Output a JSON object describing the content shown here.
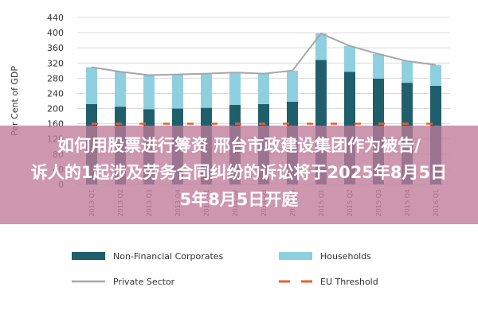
{
  "chart_data": {
    "type": "bar",
    "ylabel": "Per Cent of GDP",
    "ylim": [
      0,
      440
    ],
    "yticks": [
      0,
      40,
      80,
      120,
      160,
      200,
      240,
      280,
      320,
      360,
      400,
      440
    ],
    "categories": [
      "2013 Q1",
      "2013 Q2",
      "2013 Q3",
      "2013 Q4",
      "2014 Q1",
      "2014 Q2",
      "2014 Q3",
      "2014 Q4",
      "2015 Q1",
      "2015 Q2",
      "2015 Q3",
      "2015 Q4",
      "2016 Q1"
    ],
    "series": [
      {
        "name": "Non-Financial Corporates",
        "kind": "bar",
        "color": "#1f5f6b",
        "values": [
          212,
          205,
          198,
          200,
          202,
          210,
          212,
          218,
          328,
          297,
          279,
          268,
          260
        ]
      },
      {
        "name": "Households",
        "kind": "bar",
        "color": "#8fd0e0",
        "values": [
          97,
          92,
          90,
          90,
          90,
          85,
          80,
          82,
          70,
          68,
          65,
          57,
          55
        ]
      },
      {
        "name": "Private Sector",
        "kind": "line",
        "color": "#a6a6a6",
        "values": [
          309,
          297,
          288,
          290,
          292,
          295,
          292,
          300,
          398,
          365,
          344,
          325,
          315
        ]
      },
      {
        "name": "EU Threshold",
        "kind": "dashed-line",
        "color": "#e8602c",
        "values": [
          160,
          160,
          160,
          160,
          160,
          160,
          160,
          160,
          160,
          160,
          160,
          160,
          160
        ]
      }
    ],
    "legend": "bottom"
  },
  "banner": {
    "lines": [
      "如何用股票进行筹资 邢台市政建设集团作为被告/",
      "诉人的1起涉及劳务合同纠纷的诉讼将于2025年8月5日",
      "5年8月5日开庭"
    ],
    "color": "#c07a9a"
  }
}
